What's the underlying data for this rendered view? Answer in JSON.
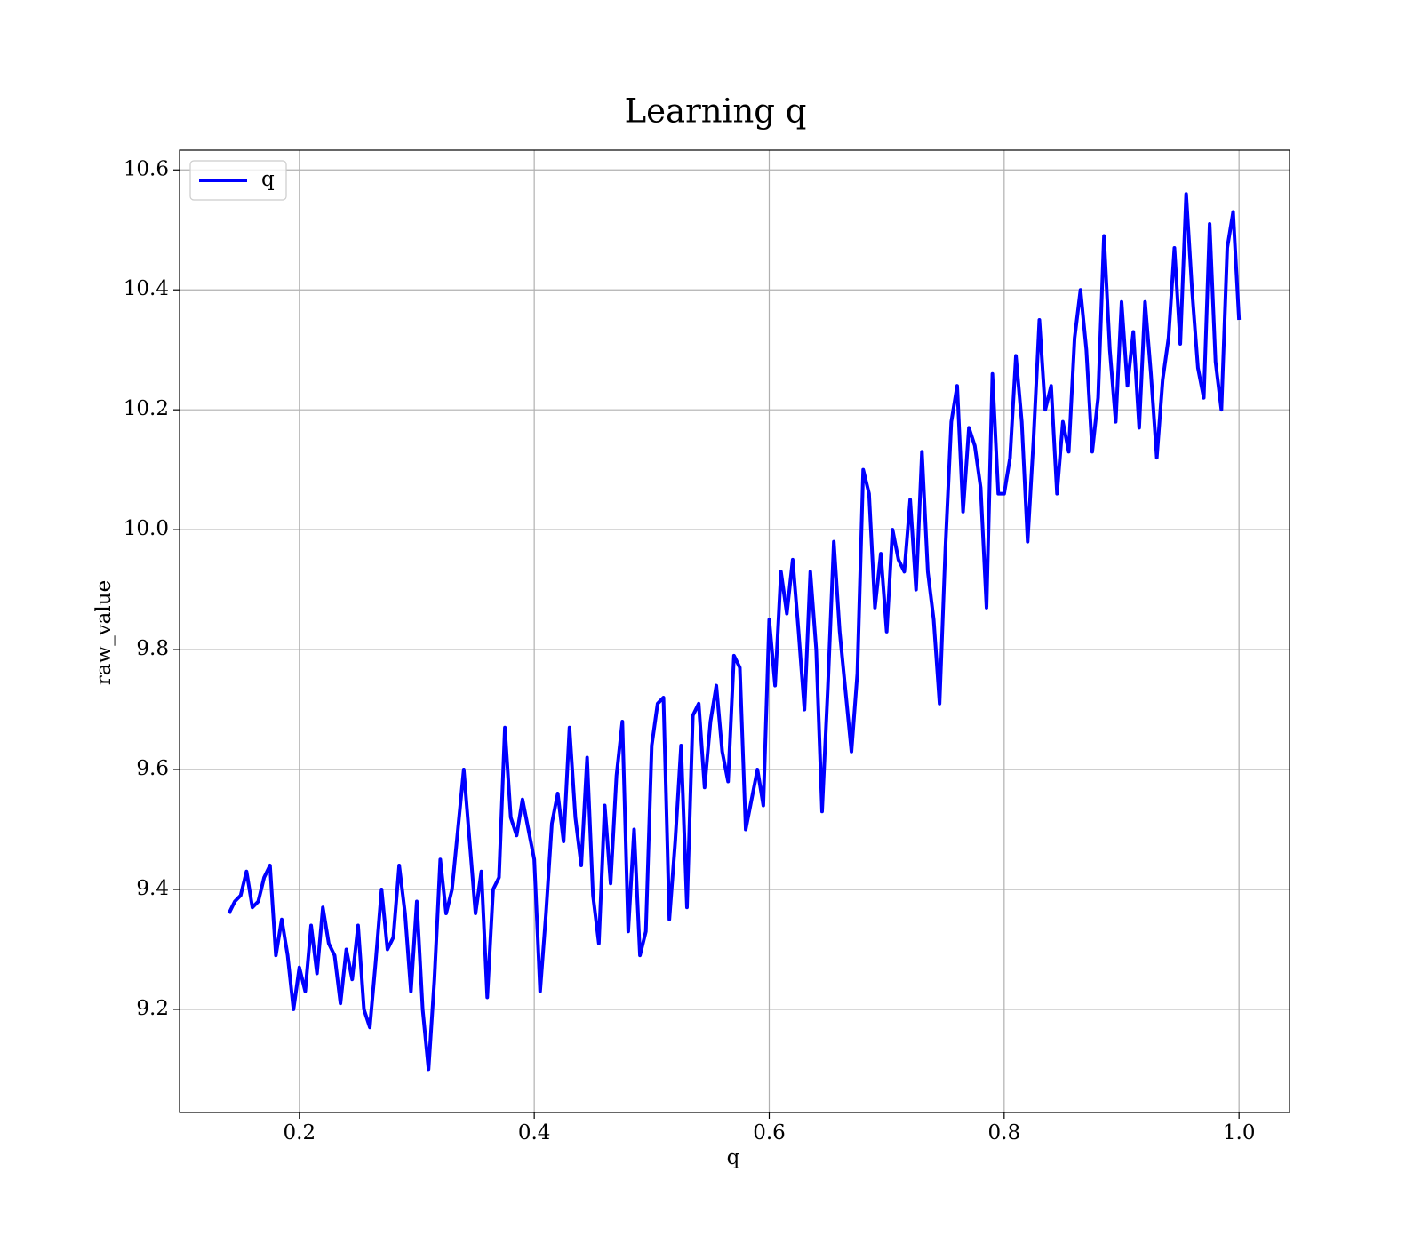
{
  "chart_data": {
    "type": "line",
    "title": "Learning q",
    "x_label": "q",
    "y_label": "raw_value",
    "xlim": [
      0.098,
      1.043
    ],
    "ylim": [
      9.028,
      10.633
    ],
    "xticks": [
      {
        "value": 0.2,
        "label": "0.2"
      },
      {
        "value": 0.4,
        "label": "0.4"
      },
      {
        "value": 0.6,
        "label": "0.6"
      },
      {
        "value": 0.8,
        "label": "0.8"
      },
      {
        "value": 1.0,
        "label": "1.0"
      }
    ],
    "yticks": [
      {
        "value": 9.2,
        "label": "9.2"
      },
      {
        "value": 9.4,
        "label": "9.4"
      },
      {
        "value": 9.6,
        "label": "9.6"
      },
      {
        "value": 9.8,
        "label": "9.8"
      },
      {
        "value": 10.0,
        "label": "10.0"
      },
      {
        "value": 10.2,
        "label": "10.2"
      },
      {
        "value": 10.4,
        "label": "10.4"
      },
      {
        "value": 10.6,
        "label": "10.6"
      }
    ],
    "grid": true,
    "legend": "upper-left",
    "x": [
      0.14,
      0.145,
      0.15,
      0.155,
      0.16,
      0.165,
      0.17,
      0.175,
      0.18,
      0.185,
      0.19,
      0.195,
      0.2,
      0.205,
      0.21,
      0.215,
      0.22,
      0.225,
      0.23,
      0.235,
      0.24,
      0.245,
      0.25,
      0.255,
      0.26,
      0.265,
      0.27,
      0.275,
      0.28,
      0.285,
      0.29,
      0.295,
      0.3,
      0.305,
      0.31,
      0.315,
      0.32,
      0.325,
      0.33,
      0.335,
      0.34,
      0.345,
      0.35,
      0.355,
      0.36,
      0.365,
      0.37,
      0.375,
      0.38,
      0.385,
      0.39,
      0.395,
      0.4,
      0.405,
      0.41,
      0.415,
      0.42,
      0.425,
      0.43,
      0.435,
      0.44,
      0.445,
      0.45,
      0.455,
      0.46,
      0.465,
      0.47,
      0.475,
      0.48,
      0.485,
      0.49,
      0.495,
      0.5,
      0.505,
      0.51,
      0.515,
      0.52,
      0.525,
      0.53,
      0.535,
      0.54,
      0.545,
      0.55,
      0.555,
      0.56,
      0.565,
      0.57,
      0.575,
      0.58,
      0.585,
      0.59,
      0.595,
      0.6,
      0.605,
      0.61,
      0.615,
      0.62,
      0.625,
      0.63,
      0.635,
      0.64,
      0.645,
      0.65,
      0.655,
      0.66,
      0.665,
      0.67,
      0.675,
      0.68,
      0.685,
      0.69,
      0.695,
      0.7,
      0.705,
      0.71,
      0.715,
      0.72,
      0.725,
      0.73,
      0.735,
      0.74,
      0.745,
      0.75,
      0.755,
      0.76,
      0.765,
      0.77,
      0.775,
      0.78,
      0.785,
      0.79,
      0.795,
      0.8,
      0.805,
      0.81,
      0.815,
      0.82,
      0.825,
      0.83,
      0.835,
      0.84,
      0.845,
      0.85,
      0.855,
      0.86,
      0.865,
      0.87,
      0.875,
      0.88,
      0.885,
      0.89,
      0.895,
      0.9,
      0.905,
      0.91,
      0.915,
      0.92,
      0.925,
      0.93,
      0.935,
      0.94,
      0.945,
      0.95,
      0.955,
      0.96,
      0.965,
      0.97,
      0.975,
      0.98,
      0.985,
      0.99,
      0.995,
      1.0
    ],
    "series": [
      {
        "name": "q",
        "color": "#0000ff",
        "values": [
          9.36,
          9.38,
          9.39,
          9.43,
          9.37,
          9.38,
          9.42,
          9.44,
          9.29,
          9.35,
          9.29,
          9.2,
          9.27,
          9.23,
          9.34,
          9.26,
          9.37,
          9.31,
          9.29,
          9.21,
          9.3,
          9.25,
          9.34,
          9.2,
          9.17,
          9.28,
          9.4,
          9.3,
          9.32,
          9.44,
          9.36,
          9.23,
          9.38,
          9.2,
          9.1,
          9.25,
          9.45,
          9.36,
          9.4,
          9.5,
          9.6,
          9.48,
          9.36,
          9.43,
          9.22,
          9.4,
          9.42,
          9.67,
          9.52,
          9.49,
          9.55,
          9.5,
          9.45,
          9.23,
          9.36,
          9.51,
          9.56,
          9.48,
          9.67,
          9.52,
          9.44,
          9.62,
          9.39,
          9.31,
          9.54,
          9.41,
          9.59,
          9.68,
          9.33,
          9.5,
          9.29,
          9.33,
          9.64,
          9.71,
          9.72,
          9.35,
          9.48,
          9.64,
          9.37,
          9.69,
          9.71,
          9.57,
          9.68,
          9.74,
          9.63,
          9.58,
          9.79,
          9.77,
          9.5,
          9.55,
          9.6,
          9.54,
          9.85,
          9.74,
          9.93,
          9.86,
          9.95,
          9.83,
          9.7,
          9.93,
          9.8,
          9.53,
          9.74,
          9.98,
          9.83,
          9.73,
          9.63,
          9.76,
          10.1,
          10.06,
          9.87,
          9.96,
          9.83,
          10.0,
          9.95,
          9.93,
          10.05,
          9.9,
          10.13,
          9.93,
          9.85,
          9.71,
          9.97,
          10.18,
          10.24,
          10.03,
          10.17,
          10.14,
          10.07,
          9.87,
          10.26,
          10.06,
          10.06,
          10.12,
          10.29,
          10.18,
          9.98,
          10.15,
          10.35,
          10.2,
          10.24,
          10.06,
          10.18,
          10.13,
          10.32,
          10.4,
          10.3,
          10.13,
          10.22,
          10.49,
          10.3,
          10.18,
          10.38,
          10.24,
          10.33,
          10.17,
          10.38,
          10.26,
          10.12,
          10.25,
          10.32,
          10.47,
          10.31,
          10.56,
          10.4,
          10.27,
          10.22,
          10.51,
          10.28,
          10.2,
          10.47,
          10.53,
          10.35
        ]
      }
    ]
  }
}
